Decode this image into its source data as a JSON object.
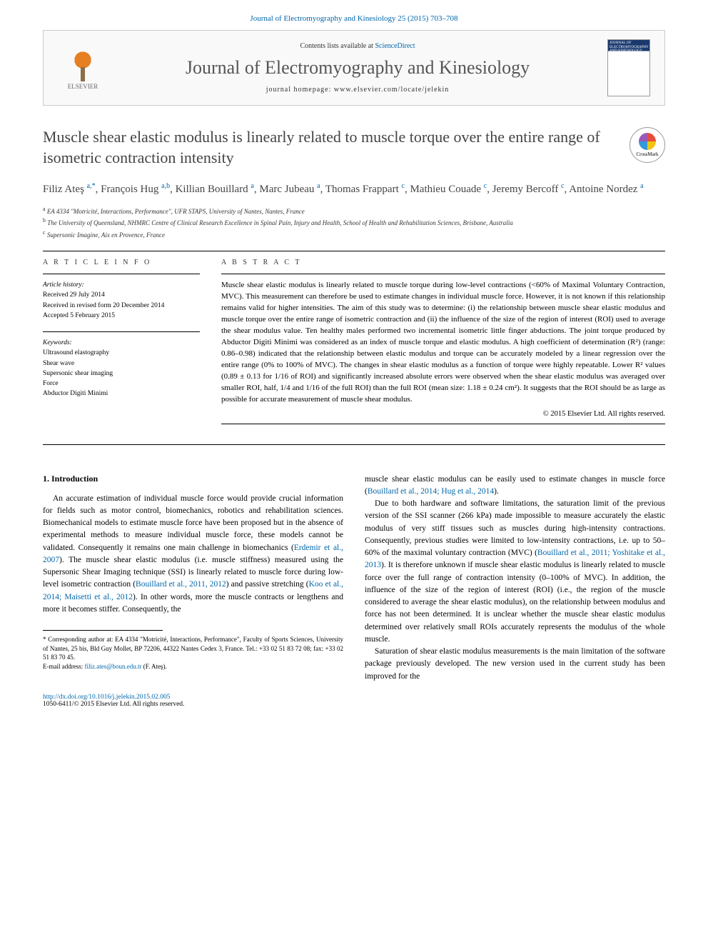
{
  "header": {
    "citation": "Journal of Electromyography and Kinesiology 25 (2015) 703–708",
    "contents_prefix": "Contents lists available at ",
    "contents_link": "ScienceDirect",
    "journal_name": "Journal of Electromyography and Kinesiology",
    "homepage_prefix": "journal homepage: ",
    "homepage_url": "www.elsevier.com/locate/jelekin",
    "publisher": "ELSEVIER",
    "cover_text": "JOURNAL OF ELECTROMYOGRAPHY AND KINESIOLOGY"
  },
  "crossmark": "CrossMark",
  "title": "Muscle shear elastic modulus is linearly related to muscle torque over the entire range of isometric contraction intensity",
  "authors_html": "Filiz Ateş <sup class='sup'>a,*</sup>, François Hug <sup class='sup'>a,b</sup>, Killian Bouillard <sup class='sup'>a</sup>, Marc Jubeau <sup class='sup'>a</sup>, Thomas Frappart <sup class='sup'>c</sup>, Mathieu Couade <sup class='sup'>c</sup>, Jeremy Bercoff <sup class='sup'>c</sup>, Antoine Nordez <sup class='sup'>a</sup>",
  "affiliations": [
    {
      "sup": "a",
      "text": "EA 4334 \"Motricité, Interactions, Performance\", UFR STAPS, University of Nantes, Nantes, France"
    },
    {
      "sup": "b",
      "text": "The University of Queensland, NHMRC Centre of Clinical Research Excellence in Spinal Pain, Injury and Health, School of Health and Rehabilitation Sciences, Brisbane, Australia"
    },
    {
      "sup": "c",
      "text": "Supersonic Imagine, Aix en Provence, France"
    }
  ],
  "article_info": {
    "label": "A R T I C L E   I N F O",
    "history_label": "Article history:",
    "history": [
      "Received 29 July 2014",
      "Received in revised form 20 December 2014",
      "Accepted 5 February 2015"
    ],
    "keywords_label": "Keywords:",
    "keywords": [
      "Ultrasound elastography",
      "Shear wave",
      "Supersonic shear imaging",
      "Force",
      "Abductor Digiti Minimi"
    ]
  },
  "abstract": {
    "label": "A B S T R A C T",
    "text": "Muscle shear elastic modulus is linearly related to muscle torque during low-level contractions (<60% of Maximal Voluntary Contraction, MVC). This measurement can therefore be used to estimate changes in individual muscle force. However, it is not known if this relationship remains valid for higher intensities. The aim of this study was to determine: (i) the relationship between muscle shear elastic modulus and muscle torque over the entire range of isometric contraction and (ii) the influence of the size of the region of interest (ROI) used to average the shear modulus value. Ten healthy males performed two incremental isometric little finger abductions. The joint torque produced by Abductor Digiti Minimi was considered as an index of muscle torque and elastic modulus. A high coefficient of determination (R²) (range: 0.86–0.98) indicated that the relationship between elastic modulus and torque can be accurately modeled by a linear regression over the entire range (0% to 100% of MVC). The changes in shear elastic modulus as a function of torque were highly repeatable. Lower R² values (0.89 ± 0.13 for 1/16 of ROI) and significantly increased absolute errors were observed when the shear elastic modulus was averaged over smaller ROI, half, 1/4 and 1/16 of the full ROI) than the full ROI (mean size: 1.18 ± 0.24 cm²). It suggests that the ROI should be as large as possible for accurate measurement of muscle shear modulus.",
    "copyright": "© 2015 Elsevier Ltd. All rights reserved."
  },
  "body": {
    "section1_heading": "1. Introduction",
    "col1_p1": "An accurate estimation of individual muscle force would provide crucial information for fields such as motor control, biomechanics, robotics and rehabilitation sciences. Biomechanical models to estimate muscle force have been proposed but in the absence of experimental methods to measure individual muscle force, these models cannot be validated. Consequently it remains one main challenge in biomechanics (Erdemir et al., 2007). The muscle shear elastic modulus (i.e. muscle stiffness) measured using the Supersonic Shear Imaging technique (SSI) is linearly related to muscle force during low-level isometric contraction (Bouillard et al., 2011, 2012) and passive stretching (Koo et al., 2014; Maisetti et al., 2012). In other words, more the muscle contracts or lengthens and more it becomes stiffer. Consequently, the",
    "col2_p1": "muscle shear elastic modulus can be easily used to estimate changes in muscle force (Bouillard et al., 2014; Hug et al., 2014).",
    "col2_p2": "Due to both hardware and software limitations, the saturation limit of the previous version of the SSI scanner (266 kPa) made impossible to measure accurately the elastic modulus of very stiff tissues such as muscles during high-intensity contractions. Consequently, previous studies were limited to low-intensity contractions, i.e. up to 50–60% of the maximal voluntary contraction (MVC) (Bouillard et al., 2011; Yoshitake et al., 2013). It is therefore unknown if muscle shear elastic modulus is linearly related to muscle force over the full range of contraction intensity (0–100% of MVC). In addition, the influence of the size of the region of interest (ROI) (i.e., the region of the muscle considered to average the shear elastic modulus), on the relationship between modulus and force has not been determined. It is unclear whether the muscle shear elastic modulus determined over relatively small ROIs accurately represents the modulus of the whole muscle.",
    "col2_p3": "Saturation of shear elastic modulus measurements is the main limitation of the software package previously developed. The new version used in the current study has been improved for the"
  },
  "footnote": {
    "text": "* Corresponding author at: EA 4334 \"Motricité, Interactions, Performance\", Faculty of Sports Sciences, University of Nantes, 25 bis, Bld Guy Mollet, BP 72206, 44322 Nantes Cedex 3, France. Tel.: +33 02 51 83 72 08; fax: +33 02 51 83 70 45.",
    "email_label": "E-mail address: ",
    "email": "filiz.ates@boun.edu.tr",
    "email_suffix": " (F. Ateş)."
  },
  "footer": {
    "doi_url": "http://dx.doi.org/10.1016/j.jelekin.2015.02.005",
    "issn_line": "1050-6411/© 2015 Elsevier Ltd. All rights reserved."
  },
  "colors": {
    "link": "#0066aa",
    "text": "#333333",
    "muted": "#555555"
  }
}
